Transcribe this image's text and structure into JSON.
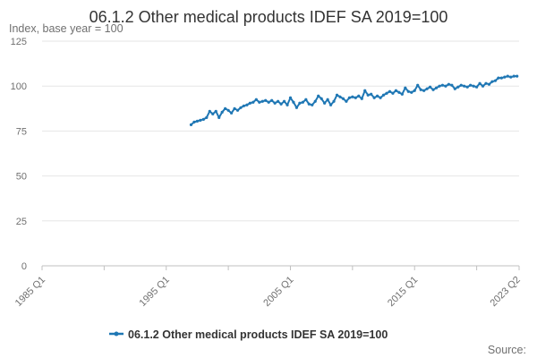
{
  "chart_data": {
    "type": "line",
    "title": "06.1.2 Other medical products IDEF SA 2019=100",
    "unit_label": "Index, base year = 100",
    "xlabel": "",
    "ylabel": "",
    "x_ticks": [
      "1985 Q1",
      "1995 Q1",
      "2005 Q1",
      "2015 Q1",
      "2023 Q2"
    ],
    "x_range": [
      "1985-01",
      "2023-06"
    ],
    "y_ticks": [
      0,
      25,
      50,
      75,
      100,
      125
    ],
    "ylim": [
      0,
      125
    ],
    "grid": "horizontal",
    "legend_position": "bottom",
    "series": [
      {
        "name": "06.1.2 Other medical products IDEF SA 2019=100",
        "color": "#1f77b4",
        "points": [
          [
            "1997-01",
            78.5
          ],
          [
            "1997-04",
            80.0
          ],
          [
            "1997-07",
            80.5
          ],
          [
            "1997-10",
            81.0
          ],
          [
            "1998-01",
            81.5
          ],
          [
            "1998-04",
            82.5
          ],
          [
            "1998-07",
            86.0
          ],
          [
            "1998-10",
            84.5
          ],
          [
            "1999-01",
            86.0
          ],
          [
            "1999-04",
            82.5
          ],
          [
            "1999-07",
            85.5
          ],
          [
            "1999-10",
            87.5
          ],
          [
            "2000-01",
            86.5
          ],
          [
            "2000-04",
            85.0
          ],
          [
            "2000-07",
            87.5
          ],
          [
            "2000-10",
            86.5
          ],
          [
            "2001-01",
            88.0
          ],
          [
            "2001-04",
            89.0
          ],
          [
            "2001-07",
            89.5
          ],
          [
            "2001-10",
            90.5
          ],
          [
            "2002-01",
            91.0
          ],
          [
            "2002-04",
            92.5
          ],
          [
            "2002-07",
            91.0
          ],
          [
            "2002-10",
            91.5
          ],
          [
            "2003-01",
            92.0
          ],
          [
            "2003-04",
            91.0
          ],
          [
            "2003-07",
            92.0
          ],
          [
            "2003-10",
            90.5
          ],
          [
            "2004-01",
            91.5
          ],
          [
            "2004-04",
            90.0
          ],
          [
            "2004-07",
            91.5
          ],
          [
            "2004-10",
            89.5
          ],
          [
            "2005-01",
            93.5
          ],
          [
            "2005-04",
            91.0
          ],
          [
            "2005-07",
            88.0
          ],
          [
            "2005-10",
            90.5
          ],
          [
            "2006-01",
            91.0
          ],
          [
            "2006-04",
            92.5
          ],
          [
            "2006-07",
            90.0
          ],
          [
            "2006-10",
            89.5
          ],
          [
            "2007-01",
            91.5
          ],
          [
            "2007-04",
            94.5
          ],
          [
            "2007-07",
            93.0
          ],
          [
            "2007-10",
            90.5
          ],
          [
            "2008-01",
            92.5
          ],
          [
            "2008-04",
            89.5
          ],
          [
            "2008-07",
            91.5
          ],
          [
            "2008-10",
            95.0
          ],
          [
            "2009-01",
            94.0
          ],
          [
            "2009-04",
            93.0
          ],
          [
            "2009-07",
            91.5
          ],
          [
            "2009-10",
            93.5
          ],
          [
            "2010-01",
            94.0
          ],
          [
            "2010-04",
            93.5
          ],
          [
            "2010-07",
            94.5
          ],
          [
            "2010-10",
            93.0
          ],
          [
            "2011-01",
            97.5
          ],
          [
            "2011-04",
            95.0
          ],
          [
            "2011-07",
            95.5
          ],
          [
            "2011-10",
            93.5
          ],
          [
            "2012-01",
            94.5
          ],
          [
            "2012-04",
            93.5
          ],
          [
            "2012-07",
            95.0
          ],
          [
            "2012-10",
            96.0
          ],
          [
            "2013-01",
            97.0
          ],
          [
            "2013-04",
            96.0
          ],
          [
            "2013-07",
            97.5
          ],
          [
            "2013-10",
            96.5
          ],
          [
            "2014-01",
            95.5
          ],
          [
            "2014-04",
            99.0
          ],
          [
            "2014-07",
            97.0
          ],
          [
            "2014-10",
            96.5
          ],
          [
            "2015-01",
            97.5
          ],
          [
            "2015-04",
            100.5
          ],
          [
            "2015-07",
            98.0
          ],
          [
            "2015-10",
            97.5
          ],
          [
            "2016-01",
            98.5
          ],
          [
            "2016-04",
            99.5
          ],
          [
            "2016-07",
            98.0
          ],
          [
            "2016-10",
            99.0
          ],
          [
            "2017-01",
            100.0
          ],
          [
            "2017-04",
            100.5
          ],
          [
            "2017-07",
            100.0
          ],
          [
            "2017-10",
            101.0
          ],
          [
            "2018-01",
            100.5
          ],
          [
            "2018-04",
            98.5
          ],
          [
            "2018-07",
            99.5
          ],
          [
            "2018-10",
            100.5
          ],
          [
            "2019-01",
            100.0
          ],
          [
            "2019-04",
            99.5
          ],
          [
            "2019-07",
            100.5
          ],
          [
            "2019-10",
            100.0
          ],
          [
            "2020-01",
            99.5
          ],
          [
            "2020-04",
            101.5
          ],
          [
            "2020-07",
            100.0
          ],
          [
            "2020-10",
            101.5
          ],
          [
            "2021-01",
            101.0
          ],
          [
            "2021-04",
            102.5
          ],
          [
            "2021-07",
            103.0
          ],
          [
            "2021-10",
            104.5
          ],
          [
            "2022-01",
            104.5
          ],
          [
            "2022-04",
            105.0
          ],
          [
            "2022-07",
            105.5
          ],
          [
            "2022-10",
            105.0
          ],
          [
            "2023-01",
            105.5
          ],
          [
            "2023-04",
            105.5
          ]
        ]
      }
    ],
    "source_label": "Source:"
  }
}
